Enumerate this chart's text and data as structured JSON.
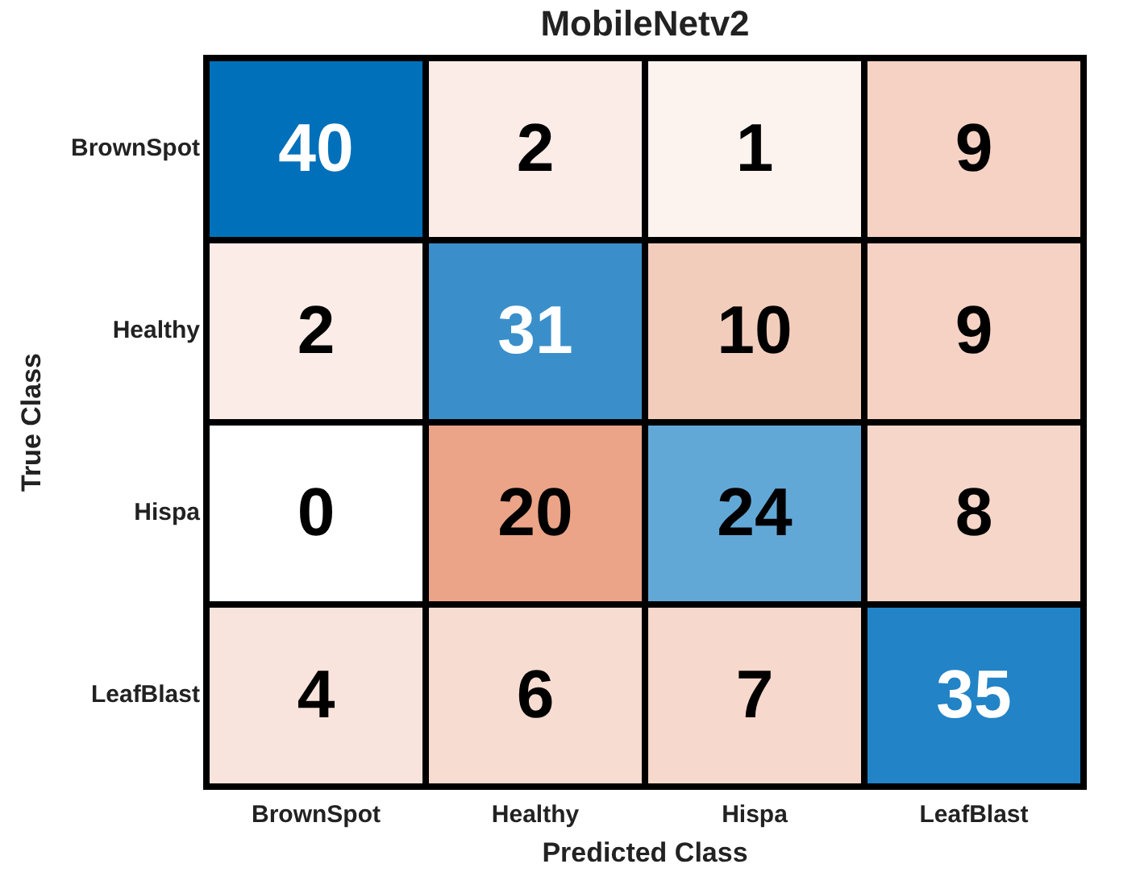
{
  "chart_data": {
    "type": "heatmap",
    "title": "MobileNetv2",
    "xlabel": "Predicted Class",
    "ylabel": "True Class",
    "categories": [
      "BrownSpot",
      "Healthy",
      "Hispa",
      "LeafBlast"
    ],
    "y_categories": [
      "BrownSpot",
      "Healthy",
      "Hispa",
      "LeafBlast"
    ],
    "cells": [
      [
        40,
        2,
        1,
        9
      ],
      [
        2,
        31,
        10,
        9
      ],
      [
        0,
        20,
        24,
        8
      ],
      [
        4,
        6,
        7,
        35
      ]
    ],
    "colors": [
      [
        "#0070ba",
        "#fbece7",
        "#fcf3ef",
        "#f5d2c4"
      ],
      [
        "#fbece7",
        "#3a8fcb",
        "#f3cdbc",
        "#f5d2c4"
      ],
      [
        "#ffffff",
        "#eba487",
        "#62a8d7",
        "#f5d6c9"
      ],
      [
        "#f8e4dc",
        "#f7dcd1",
        "#f6d8cc",
        "#2283c6"
      ]
    ],
    "data_labels": true
  }
}
